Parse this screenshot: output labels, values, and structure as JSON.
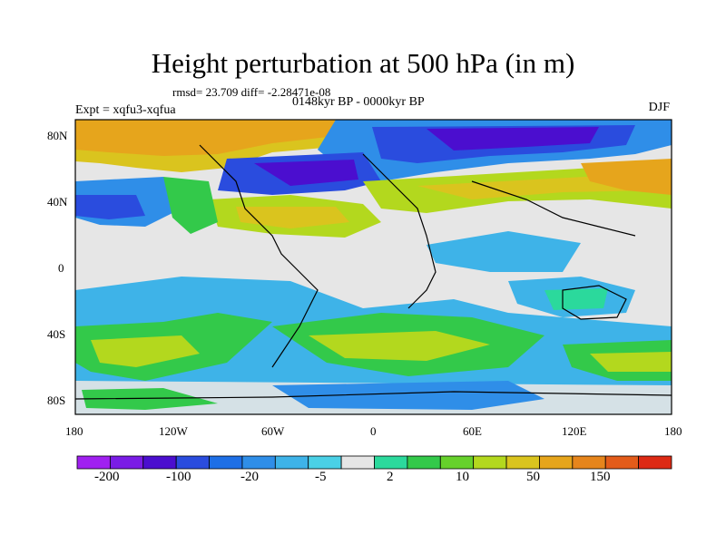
{
  "title": "Height perturbation at 500 hPa (in m)",
  "stats": "rmsd= 23.709 diff= -2.28471e-08",
  "period": "0148kyr BP - 0000kyr BP",
  "experiment": "Expt = xqfu3-xqfua",
  "season": "DJF",
  "lat_labels": [
    "80N",
    "40N",
    "0",
    "40S",
    "80S"
  ],
  "lon_labels": [
    "180",
    "120W",
    "60W",
    "0",
    "60E",
    "120E",
    "180"
  ],
  "colorbar": {
    "colors": [
      "#a020f0",
      "#7a1ce6",
      "#4b0ecf",
      "#2a4cde",
      "#1e6fe6",
      "#2f8ee8",
      "#3eb3e8",
      "#4ad0e6",
      "#e6e6e6",
      "#2bd99c",
      "#33c94a",
      "#66d12b",
      "#b3d81e",
      "#dac41e",
      "#e6a51c",
      "#e6851c",
      "#e35c1a",
      "#dd2a14"
    ],
    "labels": [
      "-200",
      "-100",
      "-20",
      "-5",
      "2",
      "10",
      "50",
      "150"
    ]
  }
}
